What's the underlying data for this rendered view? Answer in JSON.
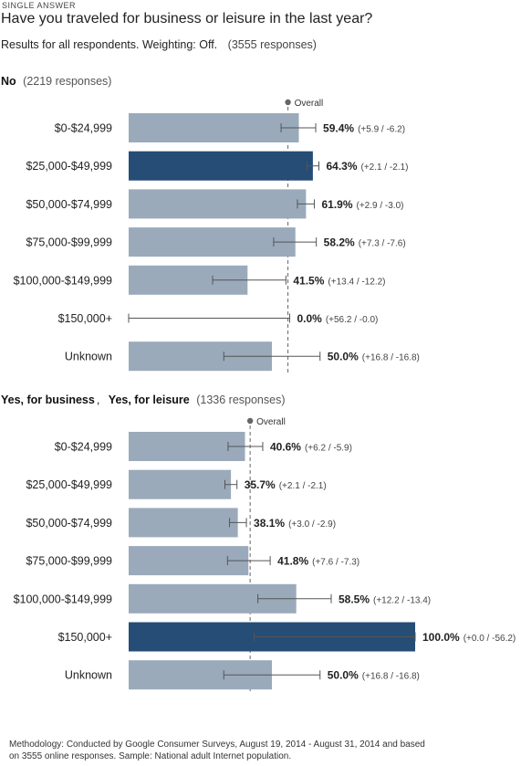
{
  "header": {
    "tag": "SINGLE ANSWER",
    "question": "Have you traveled for business or leisure in the last year?",
    "results_text": "Results for all respondents. Weighting: Off.",
    "responses_text": "(3555 responses)"
  },
  "footer": {
    "line1": "Methodology: Conducted by Google Consumer Surveys, August 19, 2014 - August 31, 2014 and based",
    "line2": "on 3555 online responses. Sample: National adult Internet population."
  },
  "colors": {
    "bar": "#9aaabb",
    "highlight": "#254d75",
    "overall_line": "#666666"
  },
  "chart_data": [
    {
      "type": "bar",
      "orientation": "horizontal",
      "group_label": "No",
      "group_label_parts": [],
      "responses_text": "(2219 responses)",
      "overall_label": "Overall",
      "overall_value": 55.6,
      "xlim": [
        0,
        100
      ],
      "categories": [
        "$0-$24,999",
        "$25,000-$49,999",
        "$50,000-$74,999",
        "$75,000-$99,999",
        "$100,000-$149,999",
        "$150,000+",
        "Unknown"
      ],
      "values": [
        59.4,
        64.3,
        61.9,
        58.2,
        41.5,
        0.0,
        50.0
      ],
      "value_labels": [
        "59.4%",
        "64.3%",
        "61.9%",
        "58.2%",
        "41.5%",
        "0.0%",
        "50.0%"
      ],
      "error_plus": [
        5.9,
        2.1,
        2.9,
        7.3,
        13.4,
        56.2,
        16.8
      ],
      "error_minus": [
        6.2,
        2.1,
        3.0,
        7.6,
        12.2,
        0.0,
        16.8
      ],
      "error_labels": [
        "(+5.9 / -6.2)",
        "(+2.1 / -2.1)",
        "(+2.9 / -3.0)",
        "(+7.3 / -7.6)",
        "(+13.4 / -12.2)",
        "(+56.2 / -0.0)",
        "(+16.8 / -16.8)"
      ],
      "highlight_index": 1
    },
    {
      "type": "bar",
      "orientation": "horizontal",
      "group_label": "",
      "group_label_parts": [
        "Yes, for business",
        "Yes, for leisure"
      ],
      "responses_text": "(1336 responses)",
      "overall_label": "Overall",
      "overall_value": 42.4,
      "xlim": [
        0,
        100
      ],
      "categories": [
        "$0-$24,999",
        "$25,000-$49,999",
        "$50,000-$74,999",
        "$75,000-$99,999",
        "$100,000-$149,999",
        "$150,000+",
        "Unknown"
      ],
      "values": [
        40.6,
        35.7,
        38.1,
        41.8,
        58.5,
        100.0,
        50.0
      ],
      "value_labels": [
        "40.6%",
        "35.7%",
        "38.1%",
        "41.8%",
        "58.5%",
        "100.0%",
        "50.0%"
      ],
      "error_plus": [
        6.2,
        2.1,
        3.0,
        7.6,
        12.2,
        0.0,
        16.8
      ],
      "error_minus": [
        5.9,
        2.1,
        2.9,
        7.3,
        13.4,
        56.2,
        16.8
      ],
      "error_labels": [
        "(+6.2 / -5.9)",
        "(+2.1 / -2.1)",
        "(+3.0 / -2.9)",
        "(+7.6 / -7.3)",
        "(+12.2 / -13.4)",
        "(+0.0 / -56.2)",
        "(+16.8 / -16.8)"
      ],
      "highlight_index": 5
    }
  ]
}
